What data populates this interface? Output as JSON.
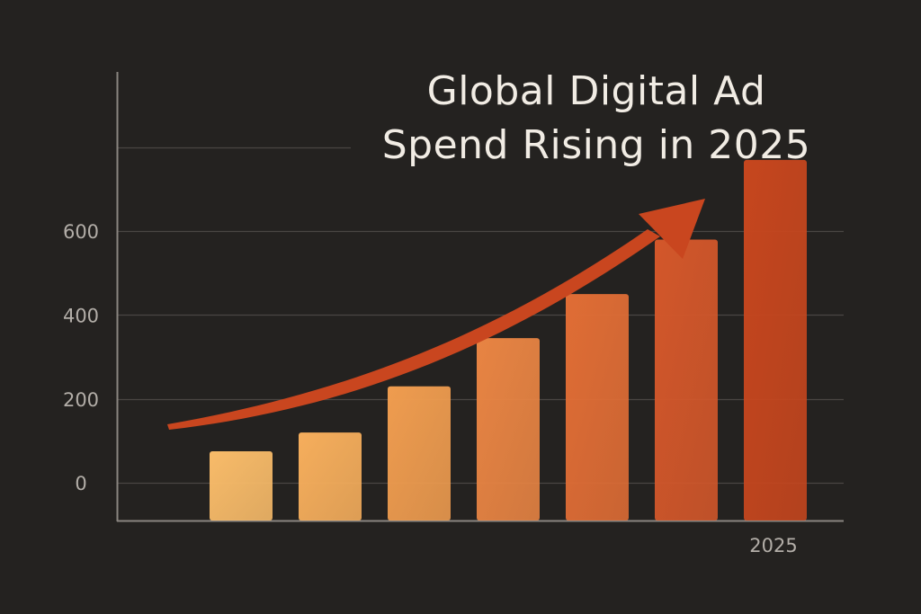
{
  "chart_data": {
    "type": "bar",
    "title_lines": [
      "Global Digital Ad",
      "Spend Rising in 2025"
    ],
    "xlabel": "",
    "ylabel": "",
    "y_tick_labels": [
      {
        "value": 0,
        "label": "0"
      },
      {
        "value": 200,
        "label": "200"
      },
      {
        "value": 400,
        "label": "400"
      },
      {
        "value": 600,
        "label": "600"
      }
    ],
    "y_gridlines": [
      0,
      200,
      400,
      600,
      800
    ],
    "ylim": [
      -90,
      980
    ],
    "x_tick_labels": [
      "",
      "",
      "",
      "",
      "",
      "",
      "2025"
    ],
    "values": [
      75,
      120,
      230,
      345,
      450,
      580,
      770
    ],
    "bar_colors": [
      "#f8bb69",
      "#f6ae5c",
      "#ef9c4f",
      "#e88443",
      "#e06d35",
      "#d3572a",
      "#c6461e"
    ],
    "trend_arrow": {
      "present": true,
      "color": "#c9461f",
      "from_index": -0.5,
      "to_index": 5.5
    },
    "grid": true,
    "legend": "none"
  },
  "colors": {
    "background": "#242220",
    "axis": "#8a8580",
    "grid": "#4a4643",
    "tick_text": "#b3aea8",
    "title_text": "#f1ece4"
  }
}
